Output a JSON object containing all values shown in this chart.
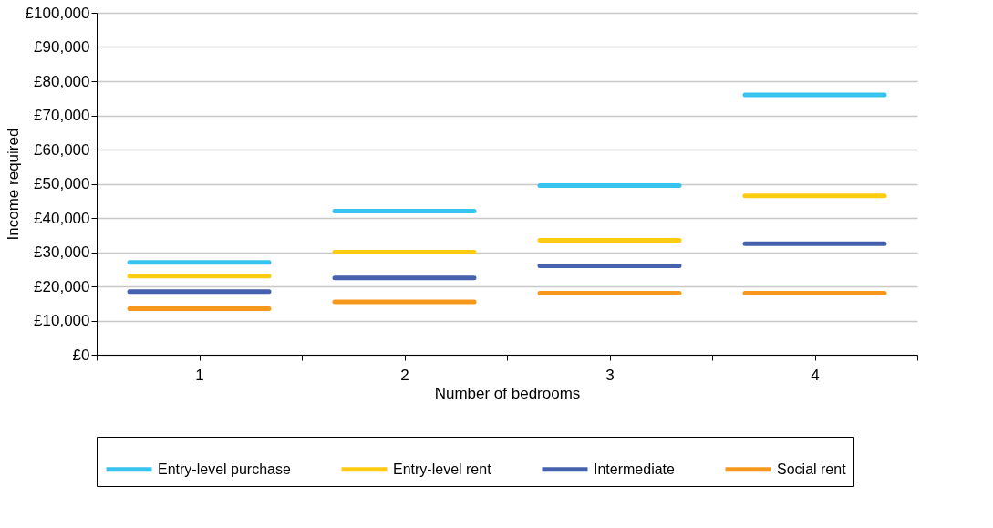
{
  "chart_data": {
    "type": "line",
    "xlabel": "Number of bedrooms",
    "ylabel": "Income required",
    "x": [
      0.66,
      1,
      1.34,
      1.5,
      1.66,
      2,
      2.34,
      2.5,
      2.66,
      3,
      3.34,
      3.5,
      3.66,
      4,
      4.34
    ],
    "series": [
      {
        "name": "Entry-level purchase",
        "color": "#38c4f0",
        "values": [
          27000,
          27000,
          27000,
          null,
          42000,
          42000,
          42000,
          null,
          49500,
          49500,
          49500,
          null,
          76000,
          76000,
          76000
        ]
      },
      {
        "name": "Entry-level rent",
        "color": "#fdcb10",
        "values": [
          23000,
          23000,
          23000,
          null,
          30000,
          30000,
          30000,
          null,
          33500,
          33500,
          33500,
          null,
          46500,
          46500,
          46500
        ]
      },
      {
        "name": "Intermediate",
        "color": "#4662ae",
        "values": [
          18500,
          18500,
          18500,
          null,
          22500,
          22500,
          22500,
          null,
          26000,
          26000,
          26000,
          null,
          32500,
          32500,
          32500
        ]
      },
      {
        "name": "Social rent",
        "color": "#f7981d",
        "values": [
          13500,
          13500,
          13500,
          null,
          15500,
          15500,
          15500,
          null,
          18000,
          18000,
          18000,
          null,
          18000,
          18000,
          18000
        ]
      }
    ],
    "xlim": [
      0.5,
      4.5
    ],
    "xticks": [
      {
        "value": 0.5,
        "label": null
      },
      {
        "value": 1,
        "label": "1"
      },
      {
        "value": 1.5,
        "label": null
      },
      {
        "value": 2,
        "label": "2"
      },
      {
        "value": 2.5,
        "label": null
      },
      {
        "value": 3,
        "label": "3"
      },
      {
        "value": 3.5,
        "label": null
      },
      {
        "value": 4,
        "label": "4"
      },
      {
        "value": 4.5,
        "label": null
      }
    ],
    "ylim": [
      0,
      100000
    ],
    "yticks": [
      {
        "value": 0,
        "label": "£0"
      },
      {
        "value": 10000,
        "label": "£10,000"
      },
      {
        "value": 20000,
        "label": "£20,000"
      },
      {
        "value": 30000,
        "label": "£30,000"
      },
      {
        "value": 40000,
        "label": "£40,000"
      },
      {
        "value": 50000,
        "label": "£50,000"
      },
      {
        "value": 60000,
        "label": "£60,000"
      },
      {
        "value": 70000,
        "label": "£70,000"
      },
      {
        "value": 80000,
        "label": "£80,000"
      },
      {
        "value": 90000,
        "label": "£90,000"
      },
      {
        "value": 100000,
        "label": "£100,000"
      }
    ],
    "grid": "y",
    "legend": "bottom",
    "marker": "none",
    "line_style": "solid"
  }
}
